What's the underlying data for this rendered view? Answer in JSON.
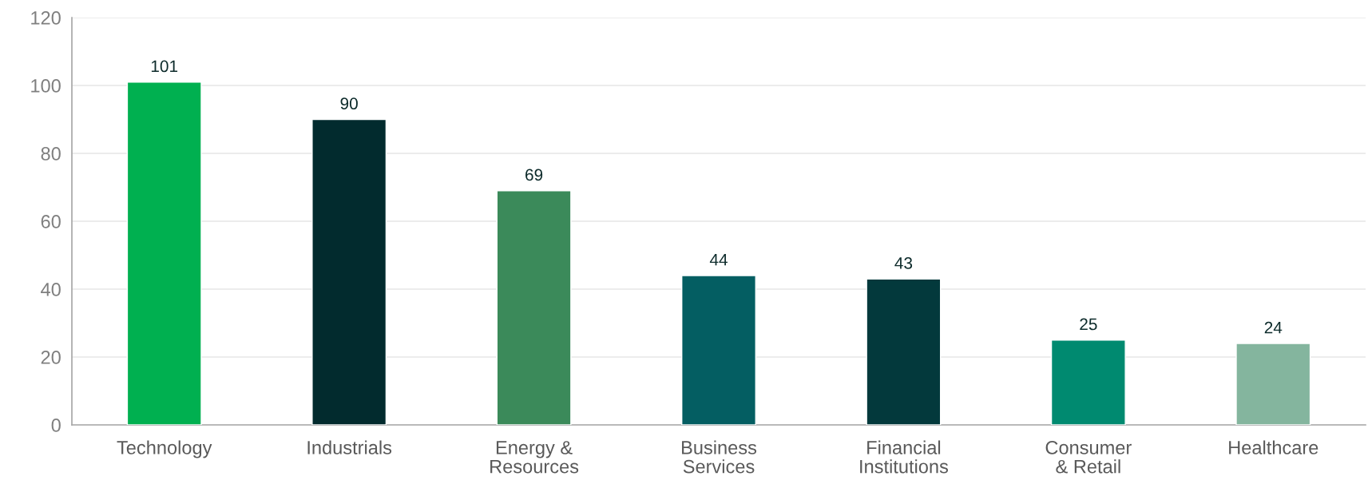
{
  "chart_data": {
    "type": "bar",
    "categories": [
      "Technology",
      "Industrials",
      "Energy &\nResources",
      "Business\nServices",
      "Financial\nInstitutions",
      "Consumer\n& Retail",
      "Healthcare"
    ],
    "values": [
      101,
      90,
      69,
      44,
      43,
      25,
      24
    ],
    "colors": [
      "#00b050",
      "#022b2e",
      "#3b8a5a",
      "#045e62",
      "#03393c",
      "#008a70",
      "#84b59e"
    ],
    "ylim": [
      0,
      120
    ],
    "yticks": [
      0,
      20,
      40,
      60,
      80,
      100,
      120
    ],
    "grid": "y",
    "data_labels": true
  }
}
